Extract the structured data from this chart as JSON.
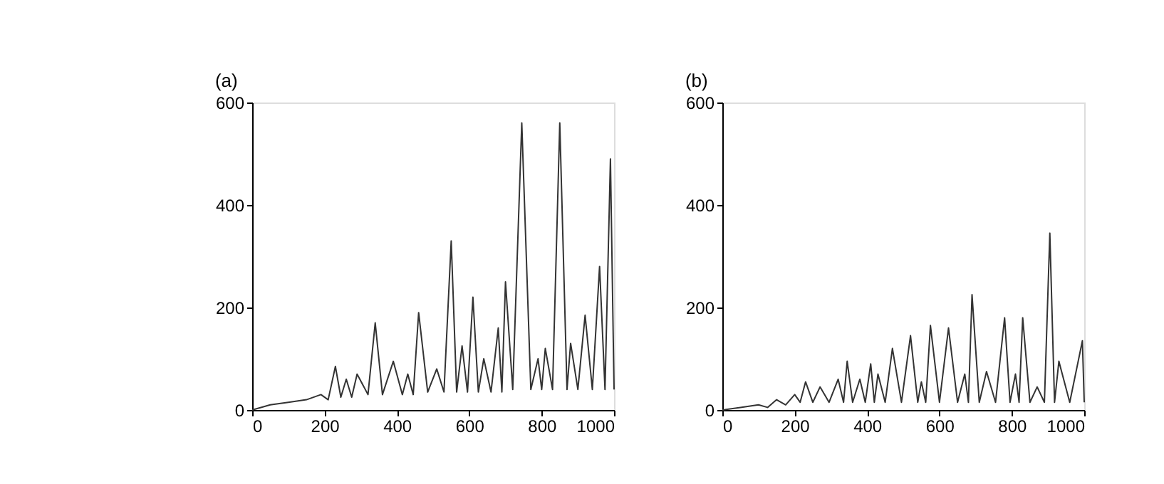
{
  "chart_data": [
    {
      "type": "line",
      "title": "(a)",
      "xlim": [
        0,
        1000
      ],
      "ylim": [
        0,
        600
      ],
      "xticks": [
        0,
        200,
        400,
        600,
        800,
        1000
      ],
      "yticks": [
        0,
        200,
        400,
        600
      ],
      "grid": false,
      "marker": "none",
      "line_style": "solid",
      "series": [
        {
          "color": "#333333",
          "x": [
            0,
            50,
            100,
            150,
            190,
            210,
            230,
            245,
            260,
            275,
            290,
            320,
            340,
            360,
            390,
            415,
            430,
            445,
            460,
            485,
            510,
            530,
            550,
            565,
            580,
            595,
            610,
            625,
            640,
            660,
            680,
            690,
            700,
            720,
            745,
            770,
            790,
            800,
            810,
            830,
            850,
            870,
            880,
            900,
            920,
            940,
            960,
            975,
            990,
            1000
          ],
          "values": [
            0,
            10,
            15,
            20,
            30,
            20,
            85,
            25,
            60,
            25,
            70,
            30,
            170,
            30,
            95,
            30,
            70,
            30,
            190,
            35,
            80,
            35,
            330,
            35,
            125,
            35,
            220,
            35,
            100,
            35,
            160,
            35,
            250,
            40,
            560,
            40,
            100,
            40,
            120,
            40,
            560,
            40,
            130,
            40,
            185,
            40,
            280,
            40,
            490,
            40
          ]
        }
      ]
    },
    {
      "type": "line",
      "title": "(b)",
      "xlim": [
        0,
        1000
      ],
      "ylim": [
        0,
        600
      ],
      "xticks": [
        0,
        200,
        400,
        600,
        800,
        1000
      ],
      "yticks": [
        0,
        200,
        400,
        600
      ],
      "grid": false,
      "marker": "none",
      "line_style": "solid",
      "series": [
        {
          "color": "#333333",
          "x": [
            0,
            50,
            100,
            125,
            150,
            175,
            200,
            215,
            230,
            250,
            270,
            295,
            320,
            335,
            345,
            360,
            380,
            395,
            410,
            420,
            430,
            450,
            470,
            495,
            520,
            540,
            550,
            562,
            575,
            600,
            625,
            650,
            670,
            680,
            690,
            710,
            730,
            755,
            780,
            795,
            810,
            820,
            830,
            850,
            870,
            890,
            905,
            918,
            930,
            960,
            995,
            1000
          ],
          "values": [
            0,
            5,
            10,
            5,
            20,
            10,
            30,
            15,
            55,
            15,
            45,
            15,
            60,
            15,
            95,
            15,
            60,
            15,
            90,
            15,
            70,
            15,
            120,
            15,
            145,
            15,
            55,
            15,
            165,
            15,
            160,
            15,
            70,
            15,
            225,
            15,
            75,
            15,
            180,
            15,
            70,
            15,
            180,
            15,
            45,
            15,
            345,
            15,
            95,
            15,
            135,
            15
          ]
        }
      ]
    }
  ]
}
